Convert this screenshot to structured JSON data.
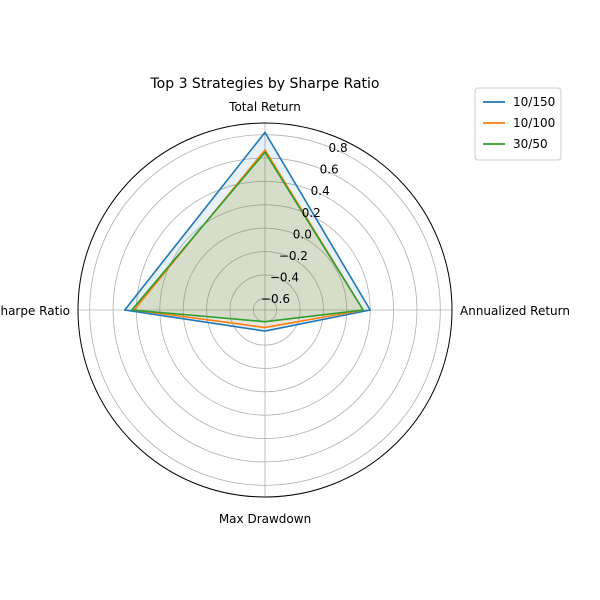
{
  "chart_data": {
    "type": "radar",
    "title": "Top 3 Strategies by Sharpe Ratio",
    "axes": [
      "Total Return",
      "Annualized Return",
      "Max Drawdown",
      "Sharpe Ratio"
    ],
    "rlim": [
      -0.7,
      0.9
    ],
    "rticks": [
      -0.6,
      -0.4,
      -0.2,
      0.0,
      0.2,
      0.4,
      0.6,
      0.8
    ],
    "rtick_labels": [
      "−0.6",
      "−0.4",
      "−0.2",
      "0.0",
      "0.2",
      "0.4",
      "0.6",
      "0.8"
    ],
    "grid": true,
    "legend_position": "top-right",
    "series": [
      {
        "name": "10/150",
        "color": "#1f77b4",
        "values": [
          0.82,
          0.2,
          -0.52,
          0.5
        ]
      },
      {
        "name": "10/100",
        "color": "#ff7f0e",
        "values": [
          0.67,
          0.14,
          -0.55,
          0.42
        ]
      },
      {
        "name": "30/50",
        "color": "#2ca02c",
        "values": [
          0.65,
          0.14,
          -0.6,
          0.44
        ]
      }
    ]
  }
}
